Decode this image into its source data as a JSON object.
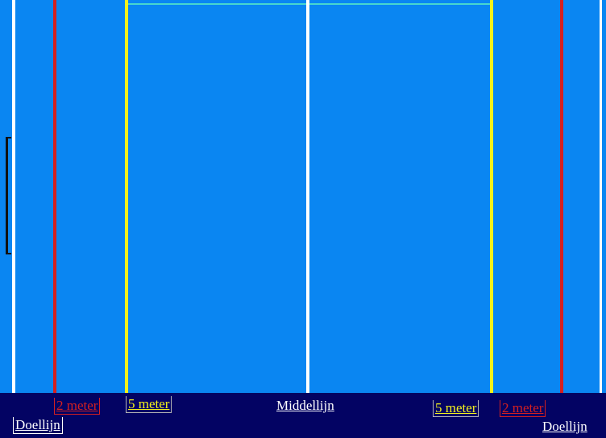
{
  "field": {
    "colors": {
      "water": "#0a86f2",
      "strip": "#030363",
      "goal_line": "#ffffff",
      "two_meter": "#d42020",
      "five_meter": "#f3f21c",
      "middle_line": "#ffffff"
    }
  },
  "labels": {
    "left_2m": "2 meter",
    "left_5m": "5 meter",
    "middle": "Middellijn",
    "right_5m": "5 meter",
    "right_2m": "2 meter",
    "left_goal": "Doellijn",
    "right_goal": "Doellijn"
  }
}
